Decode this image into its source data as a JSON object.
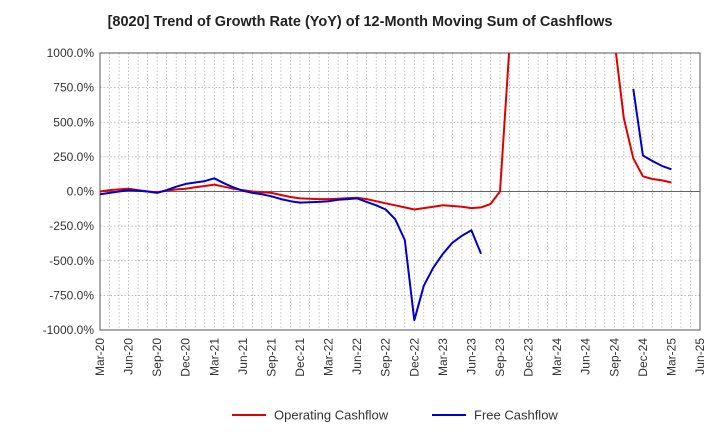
{
  "chart_data": {
    "type": "line",
    "title": "[8020]  Trend of Growth Rate (YoY) of 12-Month Moving Sum of Cashflows",
    "xlabel": "",
    "ylabel": "",
    "ylim": [
      -1000,
      1000
    ],
    "grid": true,
    "legend_position": "bottom",
    "x_ticks": [
      "Mar-20",
      "Jun-20",
      "Sep-20",
      "Dec-20",
      "Mar-21",
      "Jun-21",
      "Sep-21",
      "Dec-21",
      "Mar-22",
      "Jun-22",
      "Sep-22",
      "Dec-22",
      "Mar-23",
      "Jun-23",
      "Sep-23",
      "Dec-23",
      "Mar-24",
      "Jun-24",
      "Sep-24",
      "Dec-24",
      "Mar-25",
      "Jun-25"
    ],
    "y_ticks": [
      "1000.0%",
      "750.0%",
      "500.0%",
      "250.0%",
      "0.0%",
      "-250.0%",
      "-500.0%",
      "-750.0%",
      "-1000.0%"
    ],
    "series": [
      {
        "name": "Operating Cashflow",
        "color": "#e00000",
        "points": [
          [
            "Mar-20",
            0
          ],
          [
            "Apr-20",
            10
          ],
          [
            "May-20",
            15
          ],
          [
            "Jun-20",
            20
          ],
          [
            "Jul-20",
            10
          ],
          [
            "Aug-20",
            0
          ],
          [
            "Sep-20",
            -5
          ],
          [
            "Oct-20",
            5
          ],
          [
            "Nov-20",
            15
          ],
          [
            "Dec-20",
            20
          ],
          [
            "Jan-21",
            30
          ],
          [
            "Feb-21",
            40
          ],
          [
            "Mar-21",
            50
          ],
          [
            "Apr-21",
            35
          ],
          [
            "May-21",
            20
          ],
          [
            "Jun-21",
            10
          ],
          [
            "Jul-21",
            0
          ],
          [
            "Aug-21",
            -5
          ],
          [
            "Sep-21",
            -10
          ],
          [
            "Oct-21",
            -25
          ],
          [
            "Nov-21",
            -40
          ],
          [
            "Dec-21",
            -50
          ],
          [
            "Jan-22",
            -52
          ],
          [
            "Feb-22",
            -55
          ],
          [
            "Mar-22",
            -55
          ],
          [
            "Apr-22",
            -52
          ],
          [
            "May-22",
            -48
          ],
          [
            "Jun-22",
            -45
          ],
          [
            "Jul-22",
            -55
          ],
          [
            "Aug-22",
            -70
          ],
          [
            "Sep-22",
            -85
          ],
          [
            "Oct-22",
            -100
          ],
          [
            "Nov-22",
            -115
          ],
          [
            "Dec-22",
            -130
          ],
          [
            "Jan-23",
            -120
          ],
          [
            "Feb-23",
            -110
          ],
          [
            "Mar-23",
            -100
          ],
          [
            "Apr-23",
            -105
          ],
          [
            "May-23",
            -110
          ],
          [
            "Jun-23",
            -120
          ],
          [
            "Jul-23",
            -115
          ],
          [
            "Aug-23",
            -90
          ],
          [
            "Sep-23",
            0
          ],
          [
            "Oct-23",
            1050
          ],
          [
            "Nov-23",
            null
          ],
          [
            "Dec-23",
            null
          ],
          [
            "Jan-24",
            null
          ],
          [
            "Feb-24",
            null
          ],
          [
            "Mar-24",
            null
          ],
          [
            "Apr-24",
            null
          ],
          [
            "May-24",
            null
          ],
          [
            "Jun-24",
            null
          ],
          [
            "Jul-24",
            null
          ],
          [
            "Aug-24",
            null
          ],
          [
            "Sep-24",
            1100
          ],
          [
            "Oct-24",
            530
          ],
          [
            "Nov-24",
            240
          ],
          [
            "Dec-24",
            110
          ],
          [
            "Jan-25",
            90
          ],
          [
            "Feb-25",
            80
          ],
          [
            "Mar-25",
            65
          ]
        ]
      },
      {
        "name": "Free Cashflow",
        "color": "#0000cc",
        "points": [
          [
            "Mar-20",
            -20
          ],
          [
            "Apr-20",
            -10
          ],
          [
            "May-20",
            0
          ],
          [
            "Jun-20",
            10
          ],
          [
            "Jul-20",
            5
          ],
          [
            "Aug-20",
            0
          ],
          [
            "Sep-20",
            -10
          ],
          [
            "Oct-20",
            10
          ],
          [
            "Nov-20",
            35
          ],
          [
            "Dec-20",
            55
          ],
          [
            "Jan-21",
            65
          ],
          [
            "Feb-21",
            75
          ],
          [
            "Mar-21",
            95
          ],
          [
            "Apr-21",
            60
          ],
          [
            "May-21",
            30
          ],
          [
            "Jun-21",
            5
          ],
          [
            "Jul-21",
            -10
          ],
          [
            "Aug-21",
            -20
          ],
          [
            "Sep-21",
            -35
          ],
          [
            "Oct-21",
            -55
          ],
          [
            "Nov-21",
            -70
          ],
          [
            "Dec-21",
            -80
          ],
          [
            "Jan-22",
            -78
          ],
          [
            "Feb-22",
            -75
          ],
          [
            "Mar-22",
            -70
          ],
          [
            "Apr-22",
            -60
          ],
          [
            "May-22",
            -55
          ],
          [
            "Jun-22",
            -50
          ],
          [
            "Jul-22",
            -75
          ],
          [
            "Aug-22",
            -100
          ],
          [
            "Sep-22",
            -130
          ],
          [
            "Oct-22",
            -200
          ],
          [
            "Nov-22",
            -350
          ],
          [
            "Dec-22",
            -930
          ],
          [
            "Jan-23",
            -680
          ],
          [
            "Feb-23",
            -550
          ],
          [
            "Mar-23",
            -450
          ],
          [
            "Apr-23",
            -370
          ],
          [
            "May-23",
            -320
          ],
          [
            "Jun-23",
            -280
          ],
          [
            "Jul-23",
            -450
          ],
          [
            "Aug-23",
            null
          ],
          [
            "Sep-23",
            null
          ],
          [
            "Oct-23",
            null
          ],
          [
            "Nov-23",
            null
          ],
          [
            "Dec-23",
            null
          ],
          [
            "Jan-24",
            null
          ],
          [
            "Feb-24",
            null
          ],
          [
            "Mar-24",
            null
          ],
          [
            "Apr-24",
            null
          ],
          [
            "May-24",
            null
          ],
          [
            "Jun-24",
            null
          ],
          [
            "Jul-24",
            null
          ],
          [
            "Aug-24",
            null
          ],
          [
            "Sep-24",
            null
          ],
          [
            "Oct-24",
            null
          ],
          [
            "Nov-24",
            740
          ],
          [
            "Dec-24",
            260
          ],
          [
            "Jan-25",
            220
          ],
          [
            "Feb-25",
            185
          ],
          [
            "Mar-25",
            160
          ]
        ]
      }
    ]
  }
}
